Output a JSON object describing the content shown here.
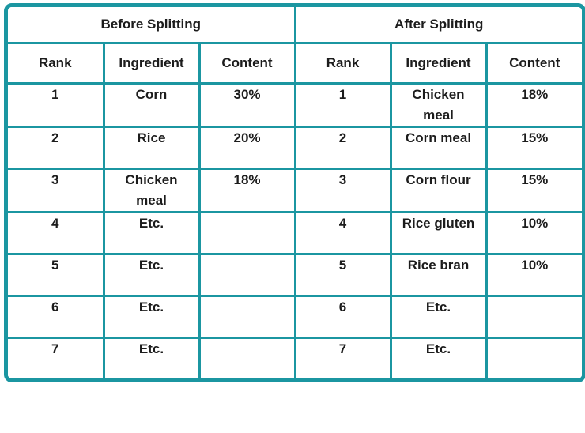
{
  "colors": {
    "border": "#1b96a1",
    "text": "#1c1c1c",
    "background": "#ffffff"
  },
  "table": {
    "group_headers": {
      "before": "Before Splitting",
      "after": "After Splitting"
    },
    "column_headers": [
      "Rank",
      "Ingredient",
      "Content",
      "Rank",
      "Ingredient",
      "Content"
    ],
    "rows": [
      {
        "before": {
          "rank": "1",
          "ingredient": "Corn",
          "content": "30%"
        },
        "after": {
          "rank": "1",
          "ingredient": "Chicken\nmeal",
          "content": "18%"
        }
      },
      {
        "before": {
          "rank": "2",
          "ingredient": "Rice",
          "content": "20%"
        },
        "after": {
          "rank": "2",
          "ingredient": "Corn meal",
          "content": "15%"
        }
      },
      {
        "before": {
          "rank": "3",
          "ingredient": "Chicken\nmeal",
          "content": "18%"
        },
        "after": {
          "rank": "3",
          "ingredient": "Corn flour",
          "content": "15%"
        }
      },
      {
        "before": {
          "rank": "4",
          "ingredient": "Etc.",
          "content": ""
        },
        "after": {
          "rank": "4",
          "ingredient": "Rice gluten",
          "content": "10%"
        }
      },
      {
        "before": {
          "rank": "5",
          "ingredient": "Etc.",
          "content": ""
        },
        "after": {
          "rank": "5",
          "ingredient": "Rice bran",
          "content": "10%"
        }
      },
      {
        "before": {
          "rank": "6",
          "ingredient": "Etc.",
          "content": ""
        },
        "after": {
          "rank": "6",
          "ingredient": "Etc.",
          "content": ""
        }
      },
      {
        "before": {
          "rank": "7",
          "ingredient": "Etc.",
          "content": ""
        },
        "after": {
          "rank": "7",
          "ingredient": "Etc.",
          "content": ""
        }
      }
    ]
  }
}
